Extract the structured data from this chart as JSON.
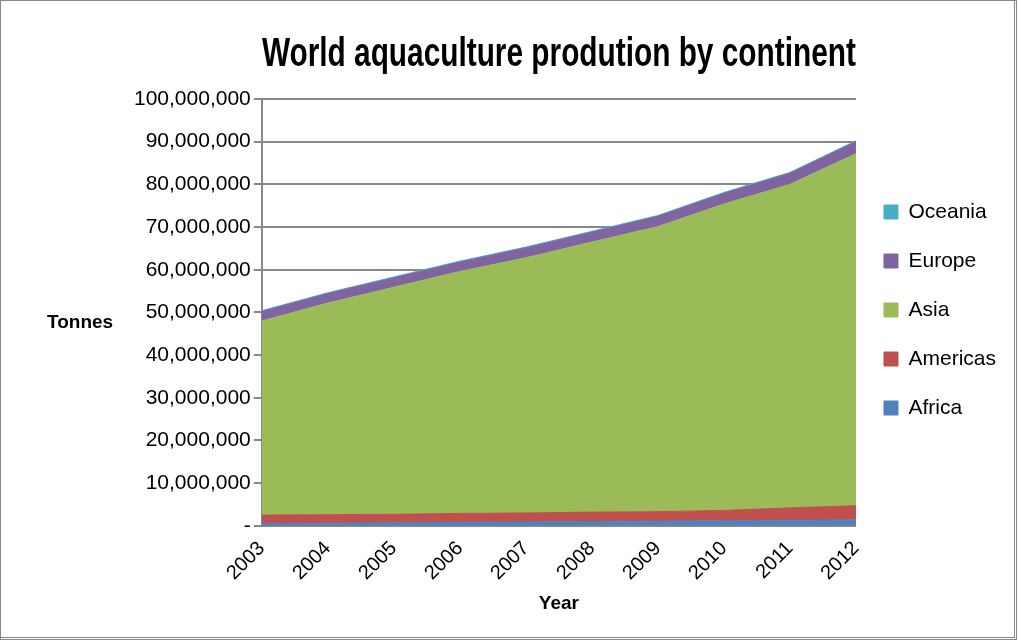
{
  "chart_data": {
    "type": "area",
    "stacked": true,
    "title": "World aquaculture prodution by continent",
    "xlabel": "Year",
    "ylabel": "Tonnes",
    "categories": [
      "2003",
      "2004",
      "2005",
      "2006",
      "2007",
      "2008",
      "2009",
      "2010",
      "2011",
      "2012"
    ],
    "series": [
      {
        "name": "Africa",
        "color": "#4f81bd",
        "values": [
          500000,
          600000,
          700000,
          800000,
          900000,
          1000000,
          1100000,
          1200000,
          1300000,
          1400000
        ]
      },
      {
        "name": "Americas",
        "color": "#c0504d",
        "values": [
          2000000,
          2000000,
          2000000,
          2100000,
          2100000,
          2200000,
          2200000,
          2400000,
          2900000,
          3300000
        ]
      },
      {
        "name": "Asia",
        "color": "#9bbb59",
        "values": [
          45500000,
          49600000,
          53200000,
          56700000,
          59800000,
          63300000,
          66800000,
          71800000,
          75800000,
          82500000
        ]
      },
      {
        "name": "Europe",
        "color": "#8064a2",
        "values": [
          2200000,
          2200000,
          2200000,
          2200000,
          2300000,
          2300000,
          2400000,
          2500000,
          2600000,
          2800000
        ]
      },
      {
        "name": "Oceania",
        "color": "#4bacc6",
        "values": [
          200000,
          200000,
          200000,
          200000,
          200000,
          200000,
          200000,
          200000,
          200000,
          200000
        ]
      }
    ],
    "ylim": [
      0,
      100000000
    ],
    "yticks": [
      {
        "value": 0,
        "label": "-"
      },
      {
        "value": 10000000,
        "label": "10,000,000"
      },
      {
        "value": 20000000,
        "label": "20,000,000"
      },
      {
        "value": 30000000,
        "label": "30,000,000"
      },
      {
        "value": 40000000,
        "label": "40,000,000"
      },
      {
        "value": 50000000,
        "label": "50,000,000"
      },
      {
        "value": 60000000,
        "label": "60,000,000"
      },
      {
        "value": 70000000,
        "label": "70,000,000"
      },
      {
        "value": 80000000,
        "label": "80,000,000"
      },
      {
        "value": 90000000,
        "label": "90,000,000"
      },
      {
        "value": 100000000,
        "label": "100,000,000"
      }
    ],
    "grid": "y",
    "legend": "right"
  }
}
